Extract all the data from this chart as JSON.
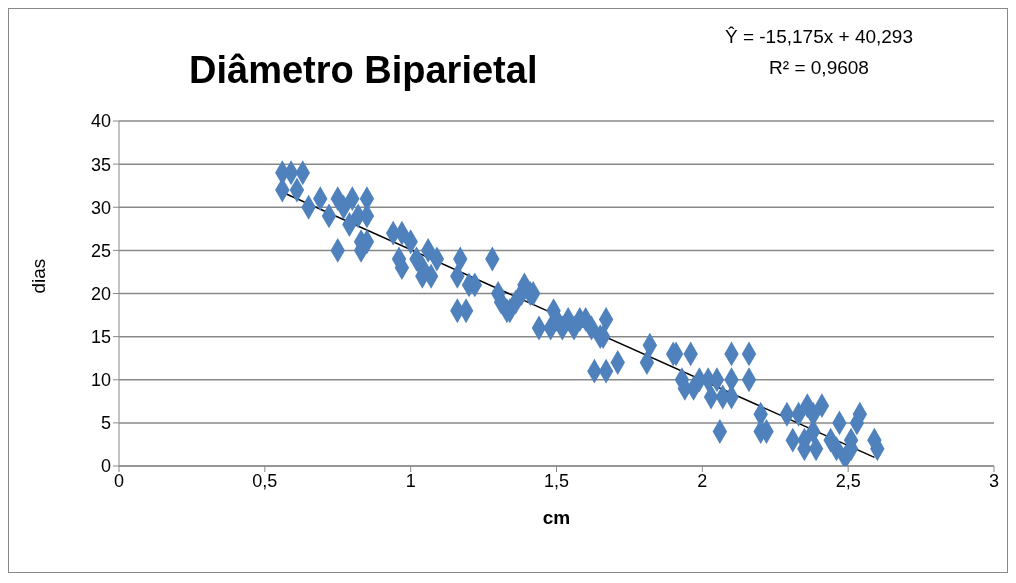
{
  "chart_data": {
    "type": "scatter",
    "title": "Diâmetro Biparietal",
    "xlabel": "cm",
    "ylabel": "dias",
    "annotations": [
      "Ŷ = -15,175x + 40,293",
      "R² = 0,9608"
    ],
    "xlim": [
      0,
      3
    ],
    "xticks": [
      0,
      {
        "value": 0.5,
        "label": "0,5"
      },
      1,
      {
        "value": 1.5,
        "label": "1,5"
      },
      2,
      {
        "value": 2.5,
        "label": "2,5"
      },
      3
    ],
    "ylim": [
      0,
      40
    ],
    "yticks": [
      0,
      5,
      10,
      15,
      20,
      25,
      30,
      35,
      40
    ],
    "grid": "y",
    "series": [
      {
        "marker": "diamond",
        "color": "#4f81bd",
        "x": [
          0.56,
          0.59,
          0.63,
          0.56,
          0.61,
          0.65,
          0.69,
          0.72,
          0.75,
          0.75,
          0.77,
          0.8,
          0.79,
          0.82,
          0.85,
          0.85,
          0.83,
          0.83,
          0.85,
          0.94,
          0.97,
          0.96,
          0.97,
          1.0,
          1.02,
          1.04,
          1.04,
          1.06,
          1.07,
          1.09,
          1.16,
          1.17,
          1.16,
          1.19,
          1.2,
          1.22,
          1.28,
          1.3,
          1.31,
          1.33,
          1.34,
          1.36,
          1.38,
          1.39,
          1.41,
          1.42,
          1.44,
          1.48,
          1.49,
          1.5,
          1.52,
          1.54,
          1.56,
          1.58,
          1.6,
          1.62,
          1.63,
          1.65,
          1.67,
          1.67,
          1.66,
          1.71,
          1.81,
          1.82,
          1.9,
          1.91,
          1.93,
          1.94,
          1.96,
          1.97,
          1.99,
          2.02,
          2.03,
          2.05,
          2.06,
          2.07,
          2.1,
          2.1,
          2.1,
          2.16,
          2.16,
          2.2,
          2.2,
          2.22,
          2.29,
          2.31,
          2.33,
          2.35,
          2.35,
          2.36,
          2.38,
          2.39,
          2.38,
          2.41,
          2.44,
          2.46,
          2.47,
          2.49,
          2.51,
          2.51,
          2.54,
          2.53,
          2.59,
          2.6
        ],
        "values": [
          34,
          34,
          34,
          32,
          32,
          30,
          31,
          29,
          31,
          25,
          30,
          31,
          28,
          29,
          31,
          29,
          26,
          25,
          26,
          27,
          27,
          24,
          23,
          26,
          24,
          23,
          22,
          25,
          22,
          24,
          22,
          24,
          18,
          18,
          21,
          21,
          24,
          20,
          19,
          18,
          18,
          19,
          20,
          21,
          20,
          20,
          16,
          16,
          18,
          17,
          16,
          17,
          16,
          17,
          17,
          16,
          11,
          15,
          11,
          17,
          15,
          12,
          12,
          14,
          13,
          13,
          10,
          9,
          13,
          9,
          10,
          10,
          8,
          10,
          4,
          8,
          10,
          8,
          13,
          13,
          10,
          6,
          4,
          4,
          6,
          3,
          6,
          3,
          2,
          7,
          4,
          2,
          6,
          7,
          3,
          2,
          5,
          1,
          3,
          2,
          6,
          5,
          3,
          2
        ]
      },
      {
        "type": "line",
        "marker": "none",
        "color": "#000000",
        "x": [
          0.57,
          2.59
        ],
        "values": [
          31.6,
          1.0
        ]
      }
    ]
  }
}
